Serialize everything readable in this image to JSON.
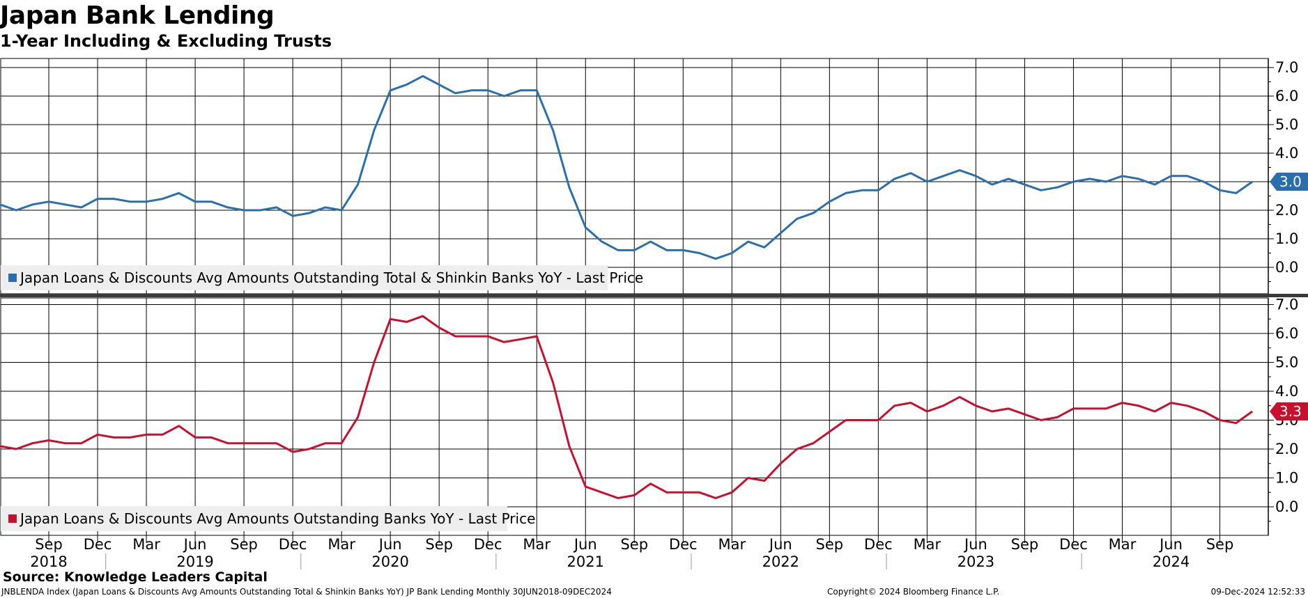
{
  "title": "Japan Bank Lending",
  "subtitle": "1-Year Including & Excluding Trusts",
  "source": "Source: Knowledge Leaders Capital",
  "footer": {
    "left": "JNBLENDA Index (Japan Loans & Discounts Avg Amounts Outstanding Total & Shinkin Banks YoY) JP Bank Lending  Monthly 30JUN2018-09DEC2024",
    "copyright": "Copyright© 2024 Bloomberg Finance L.P.",
    "timestamp": "09-Dec-2024 12:52:33"
  },
  "chart_data": [
    {
      "type": "line",
      "series_name": "Japan Loans & Discounts Avg Amounts Outstanding Total & Shinkin Banks YoY - Last Price",
      "color": "#2a6fad",
      "last_value_label": "3.0",
      "ylim": [
        -0.7,
        7.3
      ],
      "yticks": [
        "0.0",
        "1.0",
        "2.0",
        "3.0",
        "4.0",
        "5.0",
        "6.0",
        "7.0"
      ],
      "start": "Jun 2018",
      "values": [
        2.2,
        2.0,
        2.2,
        2.3,
        2.2,
        2.1,
        2.4,
        2.4,
        2.3,
        2.3,
        2.4,
        2.6,
        2.3,
        2.3,
        2.1,
        2.0,
        2.0,
        2.1,
        1.8,
        1.9,
        2.1,
        2.0,
        2.9,
        4.8,
        6.2,
        6.4,
        6.7,
        6.4,
        6.1,
        6.2,
        6.2,
        6.0,
        6.2,
        6.2,
        4.8,
        2.8,
        1.4,
        0.9,
        0.6,
        0.6,
        0.9,
        0.6,
        0.6,
        0.5,
        0.3,
        0.5,
        0.9,
        0.7,
        1.2,
        1.7,
        1.9,
        2.3,
        2.6,
        2.7,
        2.7,
        3.1,
        3.3,
        3.0,
        3.2,
        3.4,
        3.2,
        2.9,
        3.1,
        2.9,
        2.7,
        2.8,
        3.0,
        3.1,
        3.0,
        3.2,
        3.1,
        2.9,
        3.2,
        3.2,
        3.0,
        2.7,
        2.6,
        3.0
      ]
    },
    {
      "type": "line",
      "series_name": "Japan Loans & Discounts Avg Amounts Outstanding Banks YoY - Last Price",
      "color": "#c8102e",
      "last_value_label": "3.3",
      "ylim": [
        -0.9,
        7.3
      ],
      "yticks": [
        "0.0",
        "1.0",
        "2.0",
        "3.0",
        "4.0",
        "5.0",
        "6.0",
        "7.0"
      ],
      "start": "Jun 2018",
      "values": [
        2.1,
        2.0,
        2.2,
        2.3,
        2.2,
        2.2,
        2.5,
        2.4,
        2.4,
        2.5,
        2.5,
        2.8,
        2.4,
        2.4,
        2.2,
        2.2,
        2.2,
        2.2,
        1.9,
        2.0,
        2.2,
        2.2,
        3.1,
        5.0,
        6.5,
        6.4,
        6.6,
        6.2,
        5.9,
        5.9,
        5.9,
        5.7,
        5.8,
        5.9,
        4.3,
        2.1,
        0.7,
        0.5,
        0.3,
        0.4,
        0.8,
        0.5,
        0.5,
        0.5,
        0.3,
        0.5,
        1.0,
        0.9,
        1.5,
        2.0,
        2.2,
        2.6,
        3.0,
        3.0,
        3.0,
        3.5,
        3.6,
        3.3,
        3.5,
        3.8,
        3.5,
        3.3,
        3.4,
        3.2,
        3.0,
        3.1,
        3.4,
        3.4,
        3.4,
        3.6,
        3.5,
        3.3,
        3.6,
        3.5,
        3.3,
        3.0,
        2.9,
        3.3
      ]
    }
  ],
  "x_axis": {
    "month_labels": [
      "Sep",
      "Dec",
      "Mar",
      "Jun",
      "Sep",
      "Dec",
      "Mar",
      "Jun",
      "Sep",
      "Dec",
      "Mar",
      "Jun",
      "Sep",
      "Dec",
      "Mar",
      "Jun",
      "Sep",
      "Dec",
      "Mar",
      "Jun",
      "Sep",
      "Dec",
      "Mar",
      "Jun",
      "Sep"
    ],
    "month_label_index": [
      3,
      6,
      9,
      12,
      15,
      18,
      21,
      24,
      27,
      30,
      33,
      36,
      39,
      42,
      45,
      48,
      51,
      54,
      57,
      60,
      63,
      66,
      69,
      72,
      75
    ],
    "year_labels": [
      "2018",
      "2019",
      "2020",
      "2021",
      "2022",
      "2023",
      "2024"
    ],
    "year_label_index": [
      3,
      12,
      24,
      36,
      48,
      60,
      72
    ]
  }
}
